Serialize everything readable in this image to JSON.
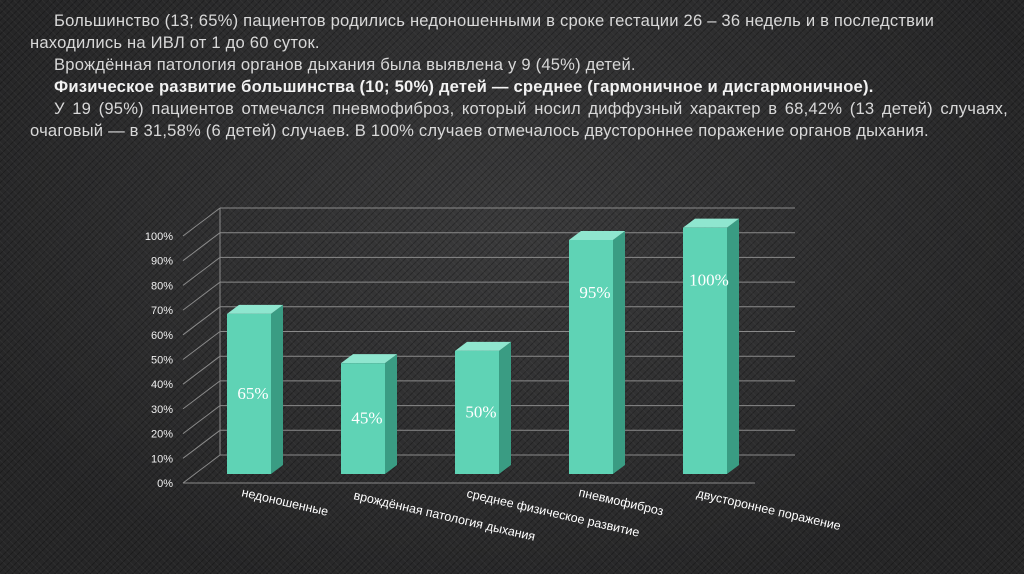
{
  "paragraphs": [
    "Большинство (13; 65%) пациентов родились недоношенными в сроке гестации 26 – 36 недель и в последствии находились на ИВЛ от 1 до 60 суток.",
    "Врождённая патология органов дыхания была выявлена у 9 (45%) детей.",
    "Физическое развитие большинства (10; 50%) детей — среднее (гармоничное и дисгармоничное).",
    "У 19 (95%) пациентов отмечался пневмофиброз, который носил диффузный характер в 68,42% (13 детей) случаях, очаговый — в 31,58% (6 детей) случаев. В 100% случаев отмечалось двустороннее поражение органов дыхания."
  ],
  "chart_data": {
    "type": "bar",
    "categories": [
      "недоношенные",
      "врождённая патология дыхания",
      "среднее физическое развитие",
      "пневмофиброз",
      "двустороннее поражение"
    ],
    "values": [
      65,
      45,
      50,
      95,
      100
    ],
    "data_labels": [
      "65%",
      "45%",
      "50%",
      "95%",
      "100%"
    ],
    "yticks": [
      "0%",
      "10%",
      "20%",
      "30%",
      "40%",
      "50%",
      "60%",
      "70%",
      "80%",
      "90%",
      "100%"
    ],
    "ylim": [
      0,
      100
    ],
    "grid": true,
    "three_d": true,
    "bar_color": "#5fd3b5",
    "bar_side_color": "#3a9c83",
    "bar_top_color": "#8fe6cf"
  }
}
